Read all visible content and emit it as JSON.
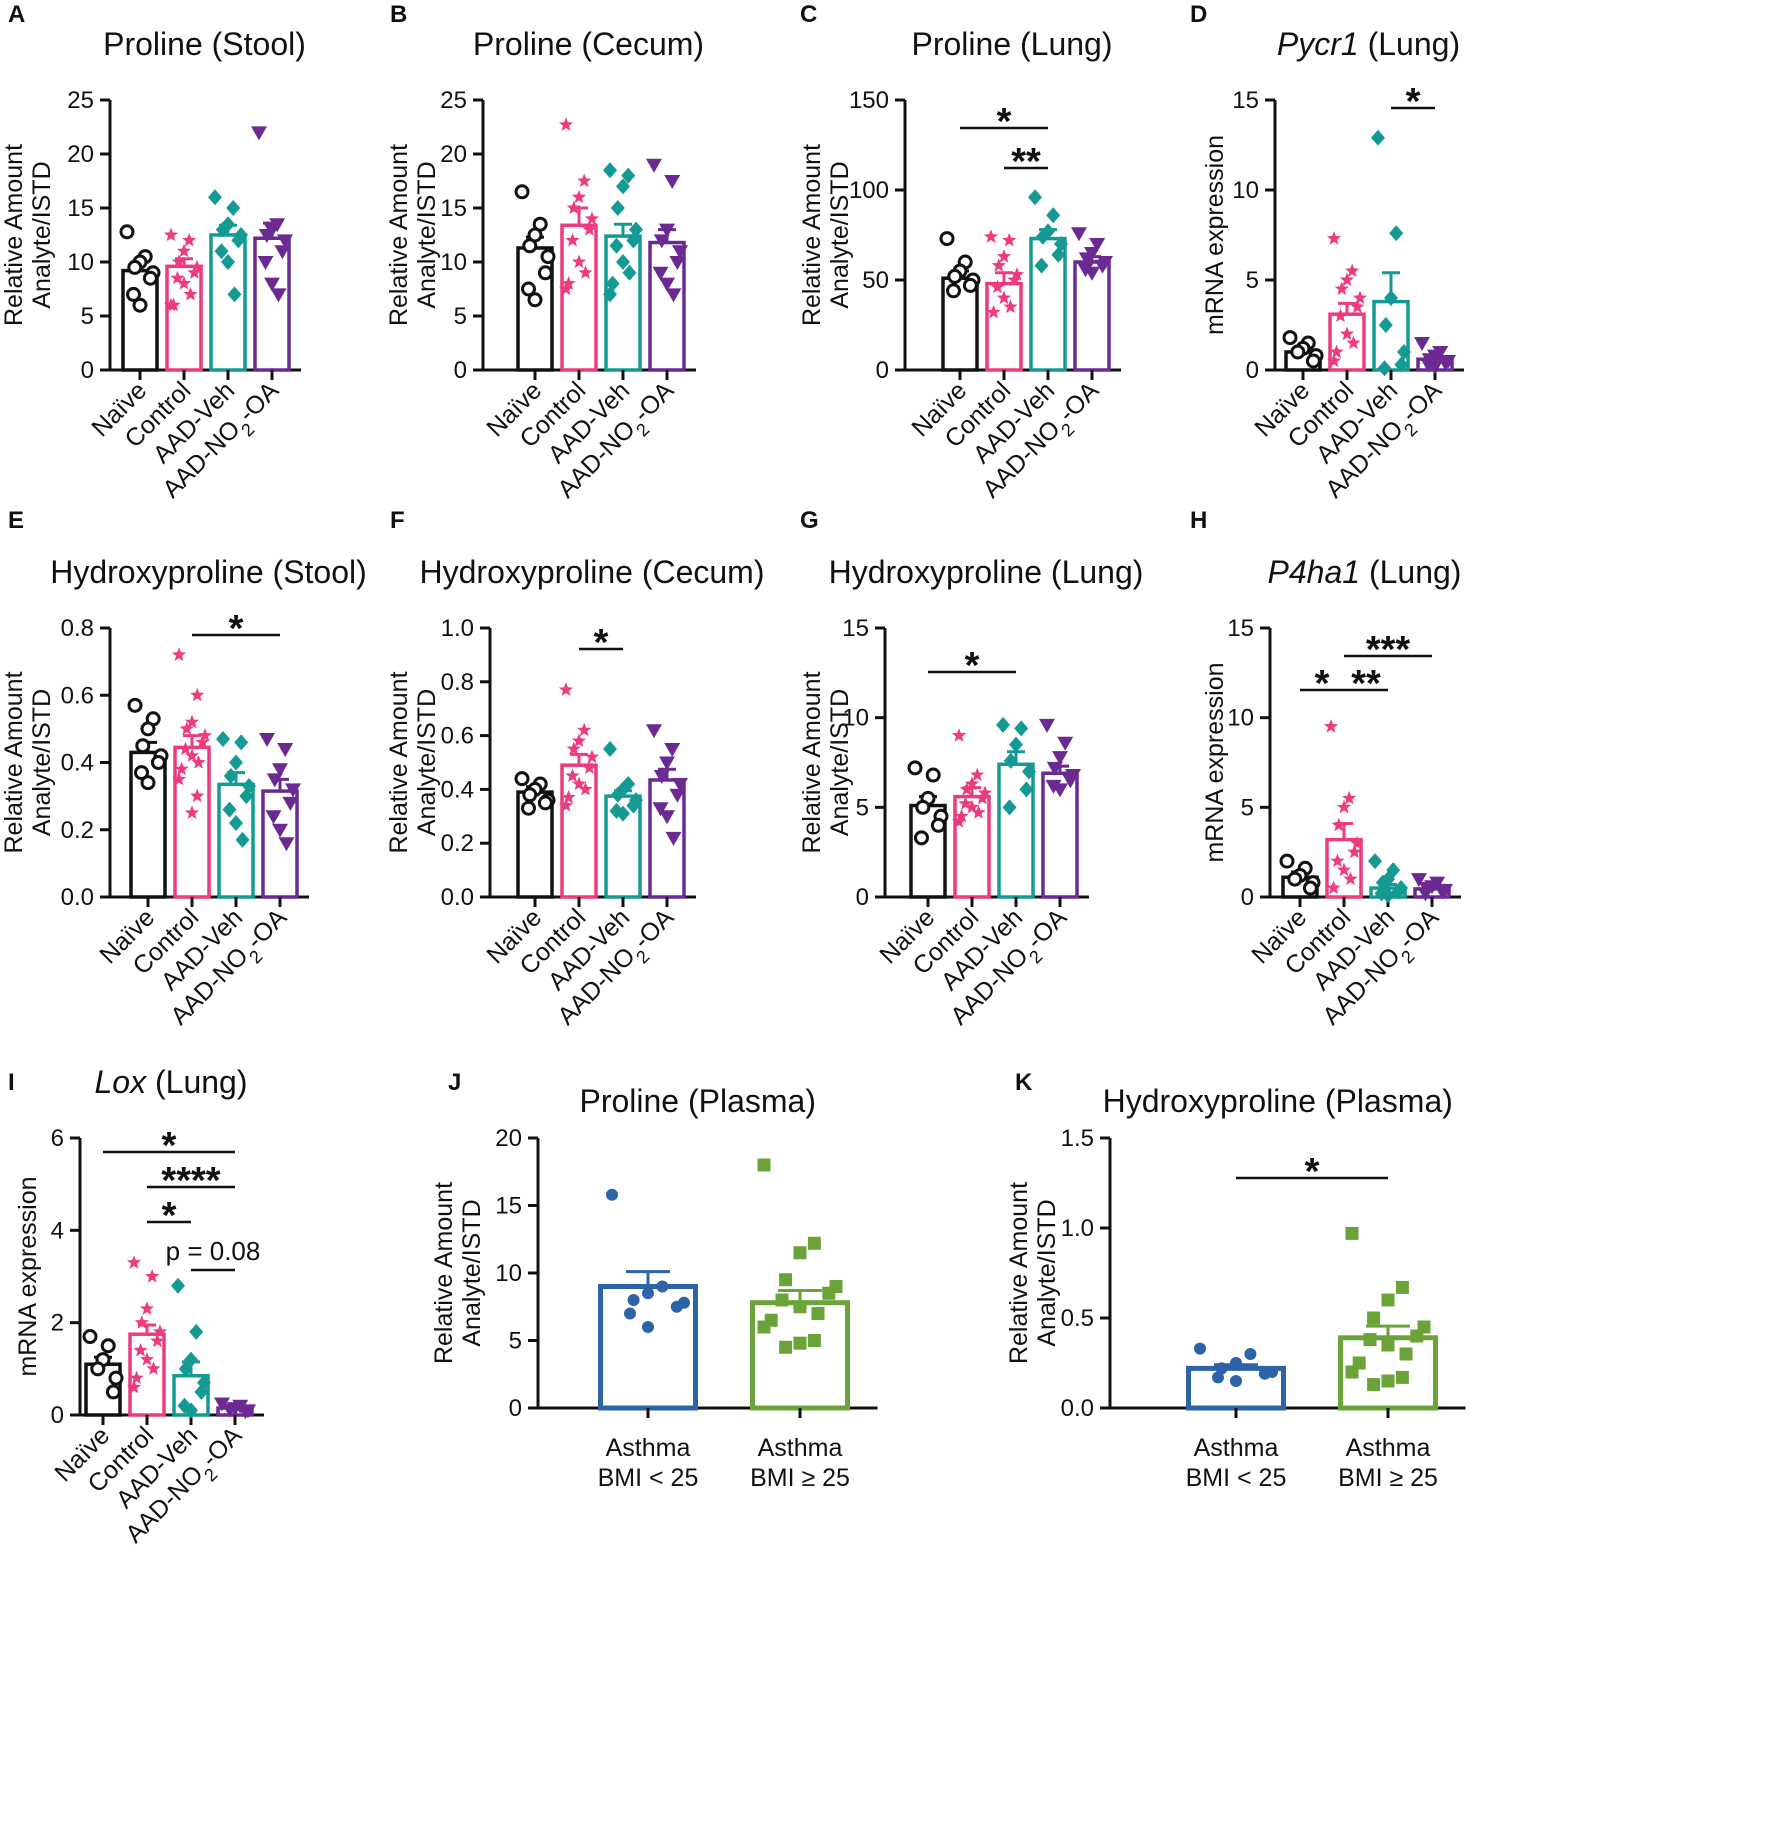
{
  "figure": {
    "categories_mouse": [
      "Naïve",
      "Control",
      "AAD-Veh",
      "AAD-NO₂-OA"
    ],
    "colors": {
      "Naïve": "#111111",
      "Control": "#ec3b7e",
      "AAD-Veh": "#149a93",
      "AAD-NO2-OA": "#6a2a92",
      "BMI<25": "#2d63a8",
      "BMI>=25": "#6aa338"
    }
  },
  "chart_data": [
    {
      "id": "A",
      "type": "bar",
      "title": "Proline (Stool)",
      "ylabel": [
        "Relative Amount",
        "Analyte/ISTD"
      ],
      "ylim": [
        0,
        25
      ],
      "yticks": [
        0,
        5,
        10,
        15,
        20,
        25
      ],
      "categories": [
        "Naïve",
        "Control",
        "AAD-Veh",
        "AAD-NO₂-OA"
      ],
      "values": [
        9.2,
        9.6,
        12.5,
        12.2
      ],
      "errors": [
        0.8,
        0.7,
        0.9,
        1.4
      ],
      "points": [
        [
          12.8,
          10.5,
          10,
          9.5,
          9,
          8.5,
          7,
          6
        ],
        [
          12.5,
          12,
          11,
          10,
          9.5,
          9,
          8.5,
          8,
          7,
          6,
          6
        ],
        [
          16,
          15,
          13.5,
          13,
          12.5,
          12,
          11,
          10,
          7
        ],
        [
          22,
          13.5,
          13,
          12.5,
          12,
          11,
          10,
          8,
          7
        ]
      ],
      "markers": [
        "circle",
        "star",
        "diamond",
        "triangle"
      ],
      "significance": []
    },
    {
      "id": "B",
      "type": "bar",
      "title": "Proline (Cecum)",
      "ylabel": [
        "Relative Amount",
        "Analyte/ISTD"
      ],
      "ylim": [
        0,
        25
      ],
      "yticks": [
        0,
        5,
        10,
        15,
        20,
        25
      ],
      "categories": [
        "Naïve",
        "Control",
        "AAD-Veh",
        "AAD-NO₂-OA"
      ],
      "values": [
        11.3,
        13.4,
        12.4,
        11.8
      ],
      "errors": [
        1.0,
        1.6,
        1.1,
        1.2
      ],
      "points": [
        [
          16.5,
          13.5,
          12.5,
          11.5,
          10.5,
          9,
          7.5,
          6.5
        ],
        [
          22.7,
          17.5,
          16,
          15,
          14,
          13,
          12,
          10,
          9,
          8,
          7.5
        ],
        [
          18.5,
          18,
          17,
          15,
          13,
          12,
          11.5,
          10,
          9,
          8,
          7
        ],
        [
          19,
          17.5,
          13,
          12,
          11,
          10,
          9,
          8,
          7
        ]
      ],
      "markers": [
        "circle",
        "star",
        "diamond",
        "triangle"
      ],
      "significance": []
    },
    {
      "id": "C",
      "type": "bar",
      "title": "Proline (Lung)",
      "ylabel": [
        "Relative Amount",
        "Analyte/ISTD"
      ],
      "ylim": [
        0,
        150
      ],
      "yticks": [
        0,
        50,
        100,
        150
      ],
      "categories": [
        "Naïve",
        "Control",
        "AAD-Veh",
        "AAD-NO₂-OA"
      ],
      "values": [
        51,
        48,
        73,
        60
      ],
      "errors": [
        4,
        6,
        5,
        3
      ],
      "points": [
        [
          73,
          60,
          55,
          52,
          50,
          47,
          44
        ],
        [
          74,
          72,
          63,
          58,
          53,
          50,
          46,
          40,
          35,
          32
        ],
        [
          96,
          86,
          77,
          74,
          70,
          64,
          58
        ],
        [
          76,
          70,
          65,
          62,
          60,
          58,
          56,
          54
        ]
      ],
      "markers": [
        "circle",
        "star",
        "diamond",
        "triangle"
      ],
      "significance": [
        {
          "from": 0,
          "to": 2,
          "label": "*"
        },
        {
          "from": 1,
          "to": 2,
          "label": "**"
        }
      ]
    },
    {
      "id": "D",
      "type": "bar",
      "title_italic": "Pycr1",
      "title": " (Lung)",
      "ylabel": [
        "mRNA expression"
      ],
      "ylim": [
        0,
        15
      ],
      "yticks": [
        0,
        5,
        10,
        15
      ],
      "categories": [
        "Naïve",
        "Control",
        "AAD-Veh",
        "AAD-NO₂-OA"
      ],
      "values": [
        1.0,
        3.1,
        3.8,
        0.6
      ],
      "errors": [
        0.25,
        0.6,
        1.6,
        0.15
      ],
      "points": [
        [
          1.8,
          1.5,
          1.2,
          1.0,
          0.8,
          0.5
        ],
        [
          7.3,
          5.5,
          5.0,
          4.5,
          4.0,
          3.5,
          3.0,
          2.0,
          1.5,
          1.0,
          0.5
        ],
        [
          12.9,
          7.6,
          4.0,
          2.5,
          1.0,
          0.3,
          0.1
        ],
        [
          1.5,
          1.0,
          0.8,
          0.6,
          0.5,
          0.4,
          0.3,
          0.2
        ]
      ],
      "markers": [
        "circle",
        "star",
        "diamond",
        "triangle"
      ],
      "significance": [
        {
          "from": 2,
          "to": 3,
          "label": "*"
        }
      ]
    },
    {
      "id": "E",
      "type": "bar",
      "title": "Hydroxyproline (Stool)",
      "ylabel": [
        "Relative Amount",
        "Analyte/ISTD"
      ],
      "ylim": [
        0,
        0.8
      ],
      "yticks": [
        0.0,
        0.2,
        0.4,
        0.6,
        0.8
      ],
      "ytick_decimals": 1,
      "categories": [
        "Naïve",
        "Control",
        "AAD-Veh",
        "AAD-NO₂-OA"
      ],
      "values": [
        0.43,
        0.445,
        0.335,
        0.315
      ],
      "errors": [
        0.03,
        0.035,
        0.035,
        0.035
      ],
      "points": [
        [
          0.57,
          0.53,
          0.5,
          0.45,
          0.42,
          0.4,
          0.37,
          0.34
        ],
        [
          0.72,
          0.6,
          0.52,
          0.5,
          0.48,
          0.46,
          0.44,
          0.42,
          0.4,
          0.38,
          0.35,
          0.3,
          0.25
        ],
        [
          0.47,
          0.46,
          0.4,
          0.36,
          0.33,
          0.3,
          0.26,
          0.22,
          0.17
        ],
        [
          0.47,
          0.44,
          0.38,
          0.35,
          0.32,
          0.28,
          0.24,
          0.2,
          0.16
        ]
      ],
      "markers": [
        "circle",
        "star",
        "diamond",
        "triangle"
      ],
      "significance": [
        {
          "from": 1,
          "to": 3,
          "label": "*"
        }
      ]
    },
    {
      "id": "F",
      "type": "bar",
      "title": "Hydroxyproline (Cecum)",
      "ylabel": [
        "Relative Amount",
        "Analyte/ISTD"
      ],
      "ylim": [
        0,
        1.0
      ],
      "yticks": [
        0.0,
        0.2,
        0.4,
        0.6,
        0.8,
        1.0
      ],
      "ytick_decimals": 1,
      "categories": [
        "Naïve",
        "Control",
        "AAD-Veh",
        "AAD-NO₂-OA"
      ],
      "values": [
        0.39,
        0.49,
        0.375,
        0.435
      ],
      "errors": [
        0.02,
        0.04,
        0.02,
        0.04
      ],
      "points": [
        [
          0.44,
          0.42,
          0.4,
          0.38,
          0.36,
          0.35,
          0.33
        ],
        [
          0.77,
          0.62,
          0.58,
          0.55,
          0.52,
          0.48,
          0.45,
          0.42,
          0.4,
          0.37,
          0.34
        ],
        [
          0.55,
          0.42,
          0.4,
          0.38,
          0.36,
          0.34,
          0.32,
          0.31
        ],
        [
          0.62,
          0.55,
          0.5,
          0.45,
          0.42,
          0.38,
          0.33,
          0.3,
          0.22
        ]
      ],
      "markers": [
        "circle",
        "star",
        "diamond",
        "triangle"
      ],
      "significance": [
        {
          "from": 1,
          "to": 2,
          "label": "*"
        }
      ]
    },
    {
      "id": "G",
      "type": "bar",
      "title": "Hydroxyproline (Lung)",
      "ylabel": [
        "Relative Amount",
        "Analyte/ISTD"
      ],
      "ylim": [
        0,
        15
      ],
      "yticks": [
        0,
        5,
        10,
        15
      ],
      "categories": [
        "Naïve",
        "Control",
        "AAD-Veh",
        "AAD-NO₂-OA"
      ],
      "values": [
        5.1,
        5.6,
        7.4,
        6.9
      ],
      "errors": [
        0.5,
        0.5,
        0.7,
        0.4
      ],
      "points": [
        [
          7.2,
          6.8,
          5.5,
          5.0,
          4.5,
          4.0,
          3.3
        ],
        [
          9.0,
          6.8,
          6.3,
          6.0,
          5.8,
          5.5,
          5.2,
          5.0,
          4.7,
          4.5,
          4.2
        ],
        [
          9.6,
          9.4,
          8.5,
          7.6,
          7.0,
          6.0,
          5.0
        ],
        [
          9.6,
          8.6,
          7.8,
          7.2,
          6.8,
          6.5,
          6.2,
          6.0
        ]
      ],
      "markers": [
        "circle",
        "star",
        "diamond",
        "triangle"
      ],
      "significance": [
        {
          "from": 0,
          "to": 2,
          "label": "*"
        }
      ]
    },
    {
      "id": "H",
      "type": "bar",
      "title_italic": "P4ha1",
      "title": " (Lung)",
      "ylabel": [
        "mRNA expression"
      ],
      "ylim": [
        0,
        15
      ],
      "yticks": [
        0,
        5,
        10,
        15
      ],
      "categories": [
        "Naïve",
        "Control",
        "AAD-Veh",
        "AAD-NO₂-OA"
      ],
      "values": [
        1.1,
        3.2,
        0.5,
        0.45
      ],
      "errors": [
        0.3,
        0.9,
        0.2,
        0.1
      ],
      "points": [
        [
          2.0,
          1.6,
          1.2,
          1.0,
          0.8,
          0.5
        ],
        [
          9.5,
          5.5,
          5.0,
          4.0,
          3.0,
          2.5,
          2.0,
          1.5,
          1.0,
          0.5
        ],
        [
          2.0,
          1.5,
          1.0,
          0.8,
          0.5,
          0.3,
          0.2,
          0.1
        ],
        [
          1.0,
          0.8,
          0.6,
          0.5,
          0.4,
          0.3,
          0.2
        ]
      ],
      "markers": [
        "circle",
        "star",
        "diamond",
        "triangle"
      ],
      "significance": [
        {
          "from": 0,
          "to": 1,
          "label": "*"
        },
        {
          "from": 1,
          "to": 2,
          "label": "**"
        },
        {
          "from": 1,
          "to": 3,
          "label": "***"
        }
      ]
    },
    {
      "id": "I",
      "type": "bar",
      "title_italic": "Lox",
      "title": " (Lung)",
      "ylabel": [
        "mRNA expression"
      ],
      "ylim": [
        0,
        6
      ],
      "yticks": [
        0,
        2,
        4,
        6
      ],
      "categories": [
        "Naïve",
        "Control",
        "AAD-Veh",
        "AAD-NO₂-OA"
      ],
      "values": [
        1.1,
        1.75,
        0.85,
        0.15
      ],
      "errors": [
        0.15,
        0.2,
        0.3,
        0.03
      ],
      "points": [
        [
          1.7,
          1.5,
          1.2,
          1.0,
          0.8,
          0.5
        ],
        [
          3.3,
          3.0,
          2.3,
          2.0,
          1.8,
          1.6,
          1.4,
          1.2,
          1.0,
          0.8,
          0.6
        ],
        [
          2.8,
          1.8,
          1.2,
          1.0,
          0.7,
          0.5,
          0.2,
          0.1
        ],
        [
          0.25,
          0.2,
          0.15,
          0.12,
          0.1,
          0.08
        ]
      ],
      "markers": [
        "circle",
        "star",
        "diamond",
        "triangle"
      ],
      "significance": [
        {
          "from": 0,
          "to": 3,
          "label": "*"
        },
        {
          "from": 1,
          "to": 3,
          "label": "****"
        },
        {
          "from": 1,
          "to": 2,
          "label": "*"
        },
        {
          "from": 2,
          "to": 3,
          "label": "p = 0.08"
        }
      ]
    },
    {
      "id": "J",
      "type": "bar",
      "title": "Proline (Plasma)",
      "ylabel": [
        "Relative Amount",
        "Analyte/ISTD"
      ],
      "ylim": [
        0,
        20
      ],
      "yticks": [
        0,
        5,
        10,
        15,
        20
      ],
      "categories": [
        "Asthma\nBMI < 25",
        "Asthma\nBMI ≥ 25"
      ],
      "values": [
        9.0,
        7.8
      ],
      "errors": [
        1.1,
        0.9
      ],
      "points": [
        [
          15.8,
          9.0,
          8.5,
          8.0,
          7.8,
          7.5,
          7.0,
          6.0
        ],
        [
          18.0,
          12.2,
          11.5,
          9.5,
          9.0,
          8.5,
          8.0,
          7.5,
          7.0,
          6.5,
          6.0,
          5.0,
          4.8,
          4.5
        ]
      ],
      "markers": [
        "circle",
        "square"
      ],
      "significance": []
    },
    {
      "id": "K",
      "type": "bar",
      "title": "Hydroxyproline (Plasma)",
      "ylabel": [
        "Relative Amount",
        "Analyte/ISTD"
      ],
      "ylim": [
        0,
        1.5
      ],
      "yticks": [
        0.0,
        0.5,
        1.0,
        1.5
      ],
      "ytick_decimals": 1,
      "categories": [
        "Asthma\nBMI < 25",
        "Asthma\nBMI ≥ 25"
      ],
      "values": [
        0.22,
        0.39
      ],
      "errors": [
        0.02,
        0.065
      ],
      "points": [
        [
          0.33,
          0.3,
          0.25,
          0.22,
          0.2,
          0.19,
          0.17,
          0.15
        ],
        [
          0.97,
          0.67,
          0.6,
          0.5,
          0.45,
          0.4,
          0.38,
          0.35,
          0.3,
          0.25,
          0.2,
          0.17,
          0.15,
          0.13
        ]
      ],
      "markers": [
        "circle",
        "square"
      ],
      "significance": [
        {
          "from": 0,
          "to": 1,
          "label": "*"
        }
      ]
    }
  ]
}
